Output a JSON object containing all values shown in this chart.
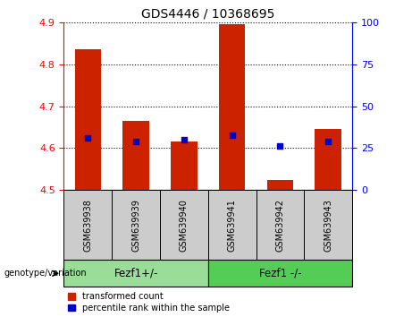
{
  "title": "GDS4446 / 10368695",
  "categories": [
    "GSM639938",
    "GSM639939",
    "GSM639940",
    "GSM639941",
    "GSM639942",
    "GSM639943"
  ],
  "red_values": [
    4.835,
    4.665,
    4.615,
    4.895,
    4.525,
    4.645
  ],
  "blue_values": [
    4.625,
    4.615,
    4.62,
    4.63,
    4.605,
    4.615
  ],
  "ylim": [
    4.5,
    4.9
  ],
  "yticks": [
    4.5,
    4.6,
    4.7,
    4.8,
    4.9
  ],
  "right_yticks": [
    0,
    25,
    50,
    75,
    100
  ],
  "right_ylim": [
    0,
    100
  ],
  "group1_label": "Fezf1+/-",
  "group2_label": "Fezf1 -/-",
  "legend_red": "transformed count",
  "legend_blue": "percentile rank within the sample",
  "genotype_label": "genotype/variation",
  "bar_color": "#cc2200",
  "dot_color": "#0000cc",
  "group1_bg": "#99dd99",
  "group2_bg": "#55cc55",
  "label_bg": "#cccccc",
  "bar_width": 0.55,
  "fig_width": 4.61,
  "fig_height": 3.54,
  "dpi": 100
}
